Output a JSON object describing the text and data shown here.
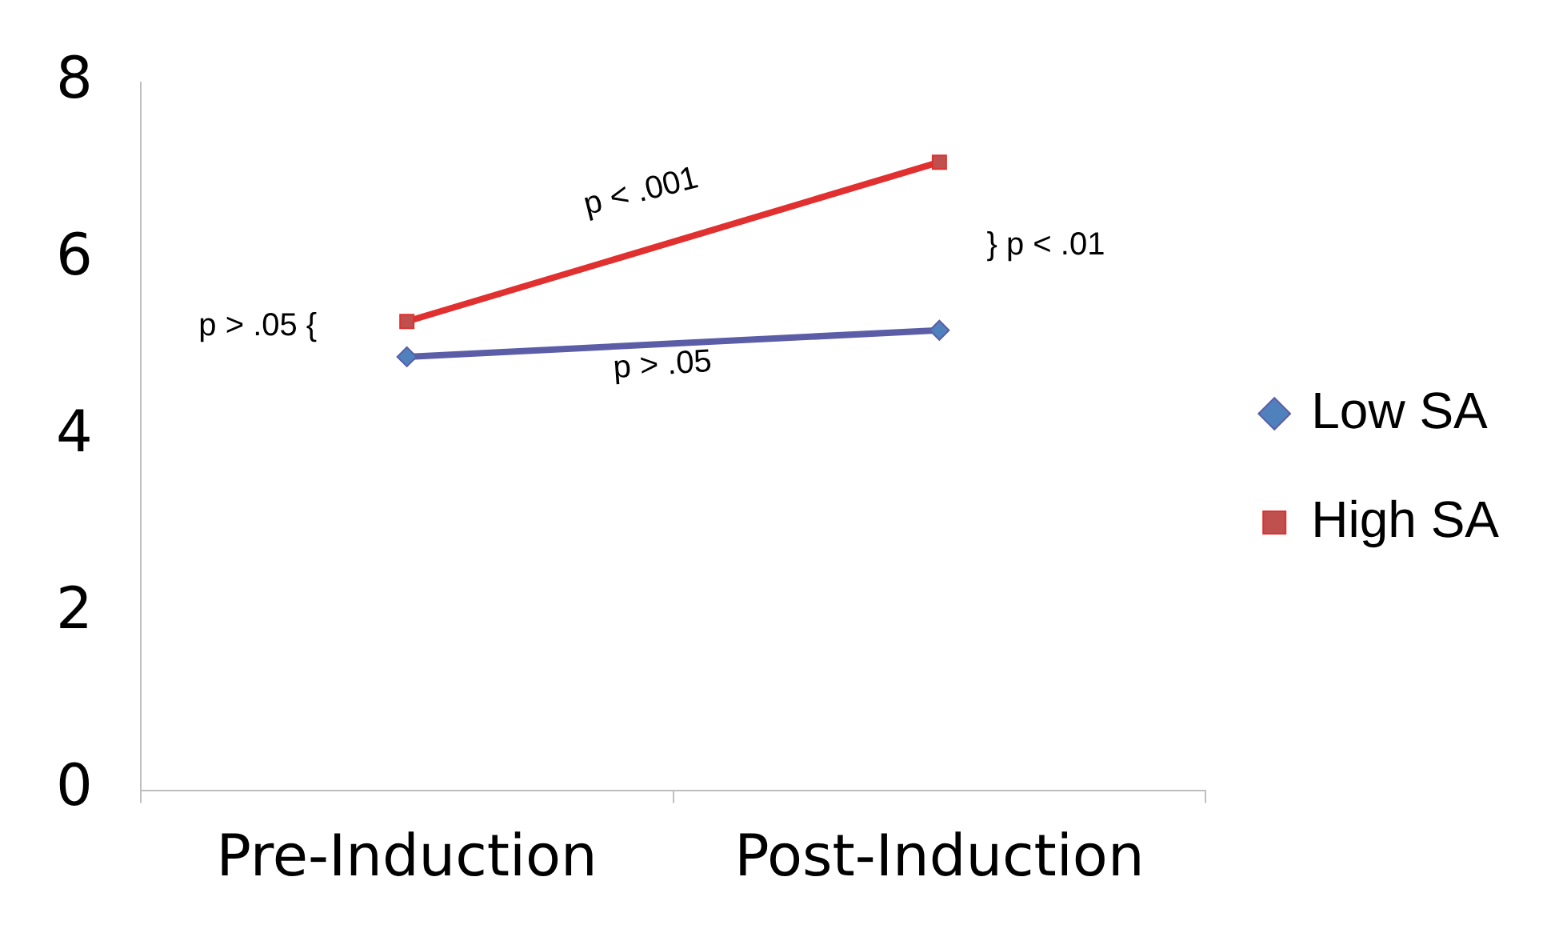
{
  "chart_data": {
    "type": "line",
    "categories": [
      "Pre-Induction",
      "Post-Induction"
    ],
    "series": [
      {
        "name": "Low SA",
        "color": "#5b5ea6",
        "marker": "diamond",
        "values": [
          4.9,
          5.2
        ]
      },
      {
        "name": "High SA",
        "color": "#e0302f",
        "marker": "square",
        "values": [
          5.3,
          7.1
        ]
      }
    ],
    "ylim": [
      0,
      8
    ],
    "yticks": [
      0,
      2,
      4,
      6,
      8
    ],
    "grid": false,
    "legend": "right",
    "line_style": "solid",
    "annotations": [
      "p < .001",
      "} p < .01",
      "p > .05 {",
      "p > .05"
    ]
  }
}
